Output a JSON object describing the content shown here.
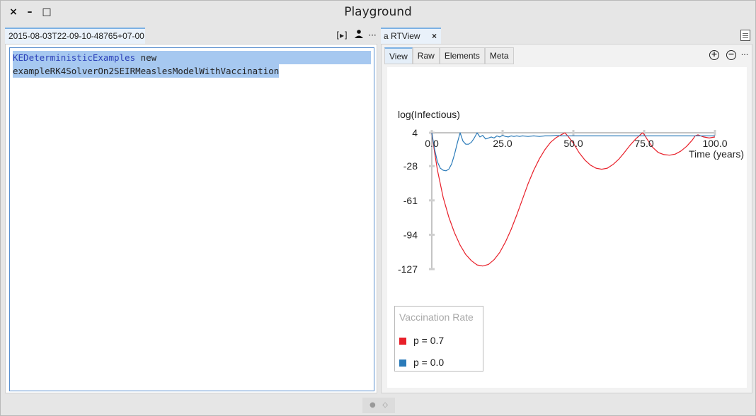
{
  "window": {
    "title": "Playground",
    "close_glyph": "×",
    "minimize_glyph": "–",
    "maximize_glyph": "□"
  },
  "left": {
    "tab_label": "2015-08-03T22-09-10-48765+07-00",
    "toolbar": {
      "run_glyph": "[▸]",
      "more_glyph": "···"
    },
    "code": {
      "line1_class": "KEDeterministicExamples",
      "line1_rest": " new",
      "line2": "exampleRK4SolverOn2SEIRMeaslesModelWithVaccination"
    }
  },
  "right": {
    "tab_label": "a RTView",
    "tab_close": "×",
    "inner_tabs": [
      "View",
      "Raw",
      "Elements",
      "Meta"
    ],
    "active_inner_tab": "View",
    "zoom_in_glyph": "+",
    "zoom_out_glyph": "−",
    "more_glyph": "···"
  },
  "chart_data": {
    "type": "line",
    "title": "",
    "xlabel": "Time (years)",
    "ylabel": "log(Infectious)",
    "xlim": [
      0,
      100
    ],
    "ylim": [
      -127,
      4
    ],
    "x_ticks": [
      "0.0",
      "25.0",
      "50.0",
      "75.0",
      "100.0"
    ],
    "y_ticks": [
      "4",
      "-28",
      "-61",
      "-94",
      "-127"
    ],
    "y_tick_values": [
      4,
      -28,
      -61,
      -94,
      -127
    ],
    "x_tick_values": [
      0,
      25,
      50,
      75,
      100
    ],
    "series": [
      {
        "name": "p = 0.7",
        "color": "#e8202a",
        "x": [
          0,
          1,
          2,
          4,
          6,
          8,
          10,
          12,
          14,
          16,
          18,
          20,
          22,
          24,
          26,
          28,
          30,
          32,
          34,
          36,
          38,
          40,
          42,
          44,
          46,
          47,
          48,
          50,
          52,
          54,
          56,
          58,
          60,
          62,
          64,
          66,
          68,
          70,
          72,
          74,
          74.5,
          75,
          76,
          78,
          80,
          82,
          84,
          86,
          88,
          90,
          92,
          93,
          94,
          96,
          98,
          100
        ],
        "y": [
          4,
          -15,
          -32,
          -58,
          -77,
          -92,
          -104,
          -113,
          -119,
          -123,
          -124,
          -122.5,
          -118,
          -111,
          -101,
          -89,
          -75,
          -60,
          -45,
          -32,
          -21,
          -12,
          -5,
          -0.5,
          2.5,
          4,
          1,
          -6,
          -15,
          -22,
          -27,
          -30,
          -31,
          -30,
          -26.5,
          -21.5,
          -15,
          -8,
          -2,
          3,
          4,
          2.5,
          -2,
          -10,
          -15,
          -17,
          -17.5,
          -16.5,
          -13.5,
          -9,
          -3,
          1,
          2,
          0,
          -1,
          0
        ]
      },
      {
        "name": "p = 0.0",
        "color": "#2b7bb9",
        "x": [
          0,
          1,
          2,
          3,
          4,
          5,
          6,
          7,
          8,
          9,
          10,
          11,
          12,
          13,
          14,
          15,
          16,
          17,
          18,
          19,
          20,
          21,
          22,
          23,
          24,
          25,
          26,
          27,
          28,
          29,
          30,
          31,
          32,
          34,
          36,
          38,
          40,
          42,
          44,
          46,
          48,
          50,
          55,
          60,
          70,
          80,
          90,
          100
        ],
        "y": [
          4,
          -12,
          -24,
          -30,
          -32,
          -32.5,
          -31,
          -26,
          -17,
          -6,
          4,
          -4,
          -7,
          -7,
          -5,
          -1,
          4,
          0,
          1.5,
          -2,
          -1,
          0,
          -1,
          1,
          0,
          1.5,
          0.5,
          0,
          1,
          0.5,
          1,
          0.5,
          1,
          0.5,
          1,
          0.5,
          1,
          1,
          1.5,
          1,
          1,
          1,
          1,
          1,
          1,
          1,
          1,
          1
        ]
      }
    ],
    "legend": {
      "title": "Vaccination Rate",
      "placement": "bottom-left",
      "entries": [
        "p = 0.7",
        "p = 0.0"
      ],
      "colors": [
        "#e8202a",
        "#2b7bb9"
      ]
    }
  },
  "bottom": {
    "dot_glyph": "●",
    "diamond_glyph": "◇"
  }
}
